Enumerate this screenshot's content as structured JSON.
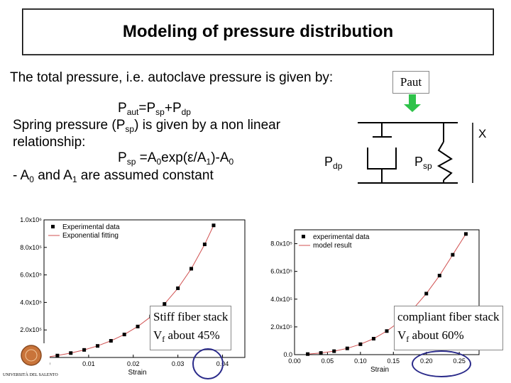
{
  "slide": {
    "title": "Modeling of pressure distribution",
    "intro": "The total pressure, i.e. autoclave pressure is given by:",
    "eq1": {
      "p": "P",
      "aut": "aut",
      "mid": "=P",
      "sp": "sp",
      "plus": "+P",
      "dp": "dp"
    },
    "line2": {
      "a": "Spring pressure (P",
      "sp": "sp",
      "b": ") is given by a non linear"
    },
    "line3": "relationship:",
    "eq2": {
      "p": "P",
      "sp": "sp",
      "a": " =A",
      "zero": "0",
      "b": "exp(ε/A",
      "one": "1",
      "c": ")-A",
      "zero2": "0"
    },
    "line4": {
      "a": "- A",
      "zero": "0",
      "b": " and A",
      "one": "1",
      "c": " are assumed constant"
    }
  },
  "diagram": {
    "paut_label": "Paut",
    "x_label": "X",
    "pdp": {
      "p": "P",
      "sub": "dp"
    },
    "psp": {
      "p": "P",
      "sub": "sp"
    }
  },
  "captions": {
    "left": {
      "line1": "Stiff fiber stack",
      "v": "V",
      "f": "f",
      "rest": " about 45%"
    },
    "right": {
      "line1": "compliant fiber stack",
      "v": "V",
      "f": "f",
      "rest": " about 60%"
    }
  },
  "logo_text": "UNIVERSITÀ DEL SALENTO",
  "chart_data": [
    {
      "type": "scatter",
      "xlabel": "Strain",
      "ylabel": "",
      "xlim": [
        0.0,
        0.045
      ],
      "ylim": [
        0,
        1000000
      ],
      "x_ticks": [
        "0.00",
        "0.01",
        "0.02",
        "0.03",
        "0.04"
      ],
      "y_ticks": [
        "2.0x10⁵",
        "4.0x10⁵",
        "6.0x10⁵",
        "8.0x10⁵",
        "1.0x10⁶"
      ],
      "legend": [
        "Experimental data",
        "Exponential fitting"
      ],
      "legend_position": "top-left",
      "series": [
        {
          "name": "Experimental data",
          "x": [
            0.0,
            0.003,
            0.006,
            0.009,
            0.012,
            0.015,
            0.018,
            0.021,
            0.024,
            0.027,
            0.03,
            0.033,
            0.036,
            0.038
          ],
          "values": [
            0,
            14000,
            32000,
            55000,
            84000,
            121000,
            167000,
            225000,
            298000,
            389000,
            503000,
            645000,
            822000,
            960000
          ]
        },
        {
          "name": "Exponential fitting",
          "x": [
            0.0,
            0.003,
            0.006,
            0.009,
            0.012,
            0.015,
            0.018,
            0.021,
            0.024,
            0.027,
            0.03,
            0.033,
            0.036,
            0.038
          ],
          "values": [
            0,
            14000,
            32000,
            55000,
            84000,
            121000,
            167000,
            225000,
            298000,
            389000,
            503000,
            645000,
            822000,
            960000
          ]
        }
      ]
    },
    {
      "type": "scatter",
      "xlabel": "Strain",
      "ylabel": "",
      "xlim": [
        0.0,
        0.28
      ],
      "ylim": [
        0,
        900000
      ],
      "x_ticks": [
        "0.00",
        "0.05",
        "0.10",
        "0.15",
        "0.20",
        "0.25"
      ],
      "y_ticks": [
        "0.0",
        "2.0x10⁵",
        "4.0x10⁵",
        "6.0x10⁵",
        "8.0x10⁵"
      ],
      "legend": [
        "experimental data",
        "model result"
      ],
      "legend_position": "top-left",
      "series": [
        {
          "name": "experimental data",
          "x": [
            0.02,
            0.04,
            0.06,
            0.08,
            0.1,
            0.12,
            0.14,
            0.16,
            0.18,
            0.2,
            0.22,
            0.24,
            0.26
          ],
          "values": [
            4000,
            12000,
            25000,
            45000,
            75000,
            115000,
            170000,
            240000,
            330000,
            440000,
            570000,
            720000,
            870000
          ]
        },
        {
          "name": "model result",
          "x": [
            0.02,
            0.04,
            0.06,
            0.08,
            0.1,
            0.12,
            0.14,
            0.16,
            0.18,
            0.2,
            0.22,
            0.24,
            0.26
          ],
          "values": [
            4000,
            12000,
            25000,
            45000,
            75000,
            115000,
            170000,
            240000,
            330000,
            440000,
            570000,
            720000,
            870000
          ]
        }
      ]
    }
  ]
}
